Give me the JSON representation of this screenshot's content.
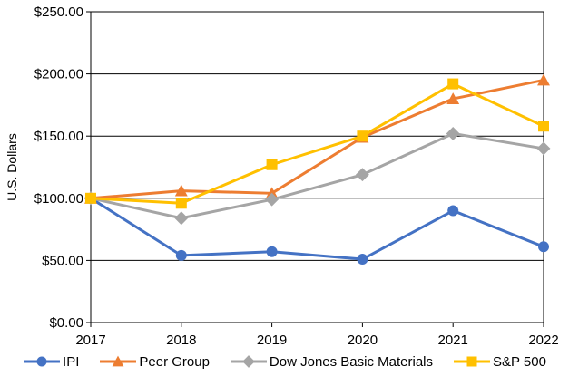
{
  "chart_data": {
    "type": "line",
    "title": "",
    "xlabel": "",
    "ylabel": "U.S. Dollars",
    "x_categories": [
      "2017",
      "2018",
      "2019",
      "2020",
      "2021",
      "2022"
    ],
    "y_ticks": [
      0,
      50,
      100,
      150,
      200,
      250
    ],
    "y_tick_labels": [
      "$0.00",
      "$50.00",
      "$100.00",
      "$150.00",
      "$200.00",
      "$250.00"
    ],
    "ylim": [
      0,
      250
    ],
    "grid": "horizontal-black",
    "legend_position": "bottom",
    "plot_border": true,
    "series": [
      {
        "name": "IPI",
        "color": "#4472C4",
        "marker": "circle",
        "values": [
          100,
          54,
          57,
          51,
          90,
          61
        ]
      },
      {
        "name": "Peer Group",
        "color": "#ED7D31",
        "marker": "triangle",
        "values": [
          100,
          106,
          104,
          149,
          180,
          195
        ]
      },
      {
        "name": "Dow Jones Basic Materials",
        "color": "#A5A5A5",
        "marker": "diamond",
        "values": [
          100,
          84,
          99,
          119,
          152,
          140
        ]
      },
      {
        "name": "S&P 500",
        "color": "#FFC000",
        "marker": "square",
        "values": [
          100,
          96,
          127,
          150,
          192,
          158
        ]
      }
    ],
    "axis_color": "#000000"
  }
}
